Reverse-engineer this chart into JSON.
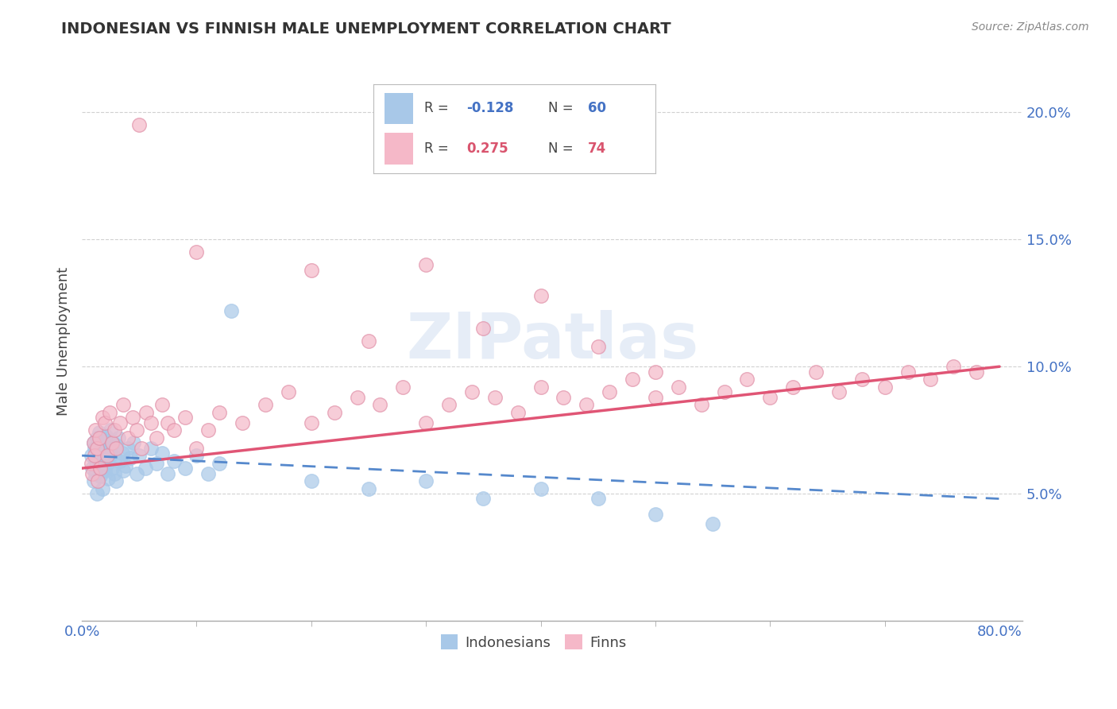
{
  "title": "INDONESIAN VS FINNISH MALE UNEMPLOYMENT CORRELATION CHART",
  "source": "Source: ZipAtlas.com",
  "ylabel": "Male Unemployment",
  "blue_R": -0.128,
  "blue_N": 60,
  "pink_R": 0.275,
  "pink_N": 74,
  "blue_color": "#a8c8e8",
  "pink_color": "#f5b8c8",
  "blue_line_color": "#5588cc",
  "pink_line_color": "#e05575",
  "grid_color": "#cccccc",
  "legend_blue_label": "Indonesians",
  "legend_pink_label": "Finns",
  "blue_R_color": "#4472c4",
  "pink_R_color": "#d9546e",
  "xlim": [
    0.0,
    0.8
  ],
  "ylim": [
    0.0,
    0.22
  ],
  "yticks": [
    0.05,
    0.1,
    0.15,
    0.2
  ],
  "ytick_labels": [
    "5.0%",
    "10.0%",
    "15.0%",
    "20.0%"
  ],
  "tick_label_color": "#4472c4",
  "indonesian_x": [
    0.008,
    0.009,
    0.01,
    0.01,
    0.011,
    0.012,
    0.012,
    0.013,
    0.013,
    0.014,
    0.015,
    0.015,
    0.016,
    0.017,
    0.018,
    0.018,
    0.019,
    0.02,
    0.02,
    0.021,
    0.022,
    0.023,
    0.024,
    0.025,
    0.025,
    0.026,
    0.027,
    0.028,
    0.029,
    0.03,
    0.03,
    0.032,
    0.033,
    0.035,
    0.036,
    0.038,
    0.04,
    0.042,
    0.045,
    0.048,
    0.05,
    0.055,
    0.06,
    0.065,
    0.07,
    0.075,
    0.08,
    0.09,
    0.1,
    0.11,
    0.12,
    0.13,
    0.2,
    0.25,
    0.3,
    0.35,
    0.4,
    0.45,
    0.5,
    0.55
  ],
  "indonesian_y": [
    0.065,
    0.06,
    0.07,
    0.055,
    0.068,
    0.063,
    0.058,
    0.072,
    0.05,
    0.066,
    0.061,
    0.074,
    0.057,
    0.069,
    0.064,
    0.052,
    0.071,
    0.067,
    0.059,
    0.073,
    0.062,
    0.056,
    0.068,
    0.065,
    0.075,
    0.06,
    0.07,
    0.058,
    0.064,
    0.069,
    0.055,
    0.072,
    0.063,
    0.066,
    0.059,
    0.061,
    0.068,
    0.064,
    0.07,
    0.058,
    0.065,
    0.06,
    0.068,
    0.062,
    0.066,
    0.058,
    0.063,
    0.06,
    0.065,
    0.058,
    0.062,
    0.122,
    0.055,
    0.052,
    0.055,
    0.048,
    0.052,
    0.048,
    0.042,
    0.038
  ],
  "finn_x": [
    0.008,
    0.009,
    0.01,
    0.011,
    0.012,
    0.013,
    0.014,
    0.015,
    0.016,
    0.018,
    0.02,
    0.022,
    0.024,
    0.026,
    0.028,
    0.03,
    0.033,
    0.036,
    0.04,
    0.044,
    0.048,
    0.052,
    0.056,
    0.06,
    0.065,
    0.07,
    0.075,
    0.08,
    0.09,
    0.1,
    0.11,
    0.12,
    0.14,
    0.16,
    0.18,
    0.2,
    0.22,
    0.24,
    0.26,
    0.28,
    0.3,
    0.32,
    0.34,
    0.36,
    0.38,
    0.4,
    0.42,
    0.44,
    0.46,
    0.48,
    0.5,
    0.52,
    0.54,
    0.56,
    0.58,
    0.6,
    0.62,
    0.64,
    0.66,
    0.68,
    0.7,
    0.72,
    0.74,
    0.76,
    0.78,
    0.05,
    0.1,
    0.2,
    0.3,
    0.4,
    0.35,
    0.25,
    0.45,
    0.5
  ],
  "finn_y": [
    0.062,
    0.058,
    0.07,
    0.065,
    0.075,
    0.068,
    0.055,
    0.072,
    0.06,
    0.08,
    0.078,
    0.065,
    0.082,
    0.07,
    0.075,
    0.068,
    0.078,
    0.085,
    0.072,
    0.08,
    0.075,
    0.068,
    0.082,
    0.078,
    0.072,
    0.085,
    0.078,
    0.075,
    0.08,
    0.068,
    0.075,
    0.082,
    0.078,
    0.085,
    0.09,
    0.078,
    0.082,
    0.088,
    0.085,
    0.092,
    0.078,
    0.085,
    0.09,
    0.088,
    0.082,
    0.092,
    0.088,
    0.085,
    0.09,
    0.095,
    0.088,
    0.092,
    0.085,
    0.09,
    0.095,
    0.088,
    0.092,
    0.098,
    0.09,
    0.095,
    0.092,
    0.098,
    0.095,
    0.1,
    0.098,
    0.195,
    0.145,
    0.138,
    0.14,
    0.128,
    0.115,
    0.11,
    0.108,
    0.098
  ]
}
